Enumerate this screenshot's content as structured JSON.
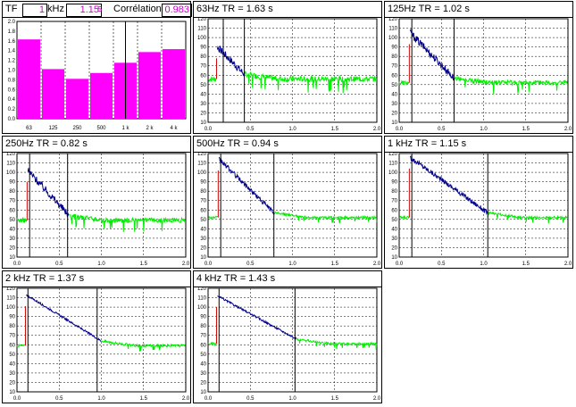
{
  "summary": {
    "tr_label": "TF",
    "freq_value": "1",
    "freq_unit": "kHz",
    "tr_value": "1.15",
    "tr_unit": "s",
    "corr_label": "Corrélation",
    "corr_value": "0.983"
  },
  "chart_data": [
    {
      "type": "bar",
      "categories": [
        "63",
        "125",
        "250",
        "500",
        "1 k",
        "2 k",
        "4 k"
      ],
      "values": [
        1.63,
        1.02,
        0.82,
        0.94,
        1.15,
        1.37,
        1.43
      ],
      "selected_category": "1 k",
      "ylim": [
        0,
        2.0
      ],
      "yticks": [
        "0.0",
        "0.2",
        "0.4",
        "0.6",
        "0.8",
        "1.0",
        "1.2",
        "1.4",
        "1.6",
        "1.8",
        "2.0"
      ],
      "bar_color": "#ff00ff"
    },
    {
      "type": "line",
      "title": "63Hz  TR = 1.63 s",
      "xticks": [
        "0.0",
        "0.5",
        "1.0",
        "1.5",
        "2.0"
      ],
      "yticks": [
        "120",
        "110",
        "100",
        "90",
        "80",
        "70",
        "60",
        "50",
        "40",
        "30",
        "20",
        "10"
      ],
      "xlim": [
        0,
        2.0
      ],
      "ylim": [
        10,
        120
      ],
      "onset": 0.1,
      "peak": 90,
      "cursor1": 0.18,
      "cursor2": 0.43,
      "noise": 56,
      "decay_end": 0.43
    },
    {
      "type": "line",
      "title": "125Hz  TR = 1.02 s",
      "xticks": [
        "0.0",
        "0.5",
        "1.0",
        "1.5",
        "2.0"
      ],
      "yticks": [
        "120",
        "110",
        "100",
        "90",
        "80",
        "70",
        "60",
        "50",
        "40",
        "30",
        "20",
        "10"
      ],
      "xlim": [
        0,
        2.0
      ],
      "ylim": [
        10,
        120
      ],
      "onset": 0.12,
      "peak": 105,
      "cursor1": 0.15,
      "cursor2": 0.65,
      "noise": 52,
      "decay_end": 0.65
    },
    {
      "type": "line",
      "title": "250Hz  TR = 0.82 s",
      "xticks": [
        "0.0",
        "0.5",
        "1.0",
        "1.5",
        "2.0"
      ],
      "yticks": [
        "120",
        "110",
        "100",
        "90",
        "80",
        "70",
        "60",
        "50",
        "40",
        "30",
        "20",
        "10"
      ],
      "xlim": [
        0,
        2.0
      ],
      "ylim": [
        10,
        120
      ],
      "onset": 0.12,
      "peak": 102,
      "cursor1": 0.15,
      "cursor2": 0.6,
      "noise": 49,
      "decay_end": 0.62
    },
    {
      "type": "line",
      "title": "500Hz  TR = 0.94 s",
      "xticks": [
        "0.0",
        "0.5",
        "1.0",
        "1.5",
        "2.0"
      ],
      "yticks": [
        "120",
        "110",
        "100",
        "90",
        "80",
        "70",
        "60",
        "50",
        "40",
        "30",
        "20",
        "10"
      ],
      "xlim": [
        0,
        2.0
      ],
      "ylim": [
        10,
        120
      ],
      "onset": 0.12,
      "peak": 114,
      "cursor1": 0.15,
      "cursor2": 0.78,
      "noise": 52,
      "decay_end": 0.78
    },
    {
      "type": "line",
      "title": "1 kHz  TR = 1.15 s",
      "xticks": [
        "0.0",
        "0.5",
        "1.0",
        "1.5",
        "2.0"
      ],
      "yticks": [
        "120",
        "110",
        "100",
        "90",
        "80",
        "70",
        "60",
        "50",
        "40",
        "30",
        "20",
        "10"
      ],
      "xlim": [
        0,
        2.0
      ],
      "ylim": [
        10,
        120
      ],
      "onset": 0.12,
      "peak": 116,
      "cursor1": 0.15,
      "cursor2": 1.05,
      "noise": 52,
      "decay_end": 1.05
    },
    {
      "type": "line",
      "title": "2 kHz  TR = 1.37 s",
      "xticks": [
        "0.0",
        "0.5",
        "1.0",
        "1.5",
        "2.0"
      ],
      "yticks": [
        "120",
        "110",
        "100",
        "90",
        "80",
        "70",
        "60",
        "50",
        "40",
        "30",
        "20",
        "10"
      ],
      "xlim": [
        0,
        2.0
      ],
      "ylim": [
        10,
        120
      ],
      "onset": 0.1,
      "peak": 113,
      "cursor1": 0.13,
      "cursor2": 0.95,
      "noise": 59,
      "decay_end": 1.0
    },
    {
      "type": "line",
      "title": "4 kHz  TR = 1.43 s",
      "xticks": [
        "0.0",
        "0.5",
        "1.0",
        "1.5",
        "2.0"
      ],
      "yticks": [
        "120",
        "110",
        "100",
        "90",
        "80",
        "70",
        "60",
        "50",
        "40",
        "30",
        "20",
        "10"
      ],
      "xlim": [
        0,
        2.0
      ],
      "ylim": [
        10,
        120
      ],
      "onset": 0.1,
      "peak": 112,
      "cursor1": 0.13,
      "cursor2": 1.03,
      "noise": 61,
      "decay_end": 1.05
    }
  ],
  "colors": {
    "decay_trace": "#00008b",
    "noise_trace": "#00ee00",
    "onset_marker": "#cc0000",
    "bar": "#ff00ff",
    "highlight_text": "#d000d0"
  }
}
